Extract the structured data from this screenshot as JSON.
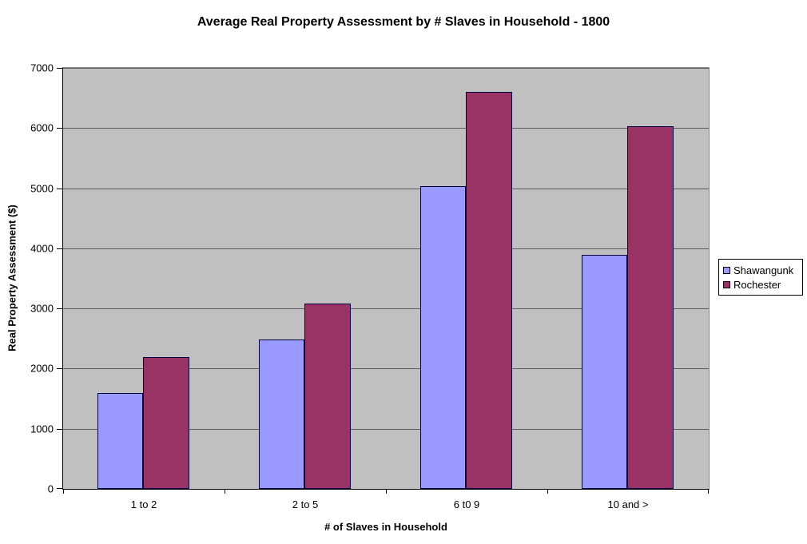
{
  "chart_data": {
    "type": "bar",
    "title": "Average Real Property Assessment by # Slaves in Household - 1800",
    "xlabel": "# of Slaves in Household",
    "ylabel": "Real Property Assessment ($)",
    "categories": [
      "1 to 2",
      "2 to 5",
      "6 t0 9",
      "10 and >"
    ],
    "series": [
      {
        "name": "Shawangunk",
        "color": "#9999FF",
        "values": [
          1600,
          2490,
          5030,
          3890
        ]
      },
      {
        "name": "Rochester",
        "color": "#993366",
        "values": [
          2190,
          3080,
          6600,
          6030
        ]
      }
    ],
    "ylim": [
      0,
      7000
    ],
    "ytick_step": 1000,
    "ytick_labels": [
      "0",
      "1000",
      "2000",
      "3000",
      "4000",
      "5000",
      "6000",
      "7000"
    ],
    "grid": true,
    "legend_position": "right",
    "legend_entries": [
      "Shawangunk",
      "Rochester"
    ],
    "colors": {
      "plot_background": "#C0C0C0",
      "gridline": "#5c5c5c",
      "axis": "#000000",
      "series_shawangunk": "#9999FF",
      "series_rochester": "#993366"
    }
  }
}
